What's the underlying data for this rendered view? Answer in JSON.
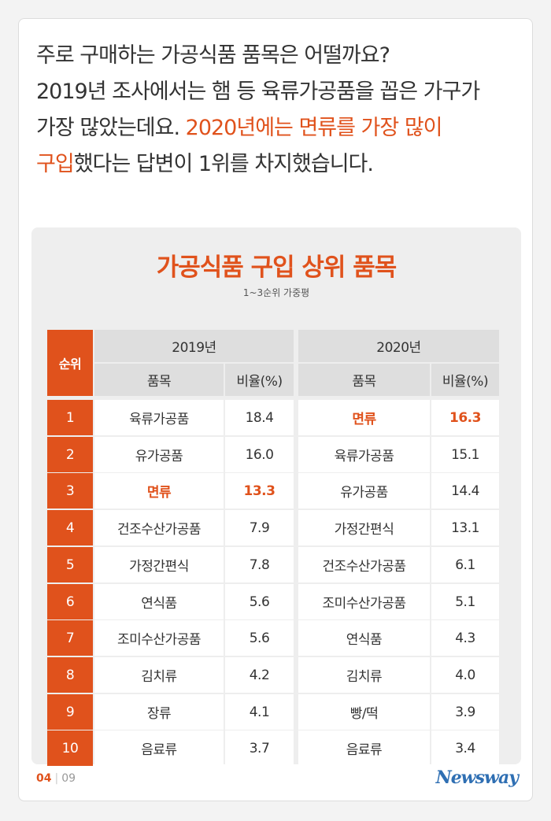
{
  "intro": {
    "line1": "주로 구매하는 가공식품 품목은 어떨까요?",
    "line2": "2019년 조사에서는 햄 등 육류가공품을 꼽은 가구가",
    "line3_plain": "가장 많았는데요. ",
    "line3_hl": "2020년에는 면류를 가장 많이",
    "line4_hl": "구입",
    "line4_plain": "했다는 답변이 1위를 차지했습니다."
  },
  "table": {
    "title": "가공식품 구입 상위 품목",
    "subtitle": "1~3순위 가중평",
    "rank_header": "순위",
    "year1": "2019년",
    "year2": "2020년",
    "item_header": "품목",
    "ratio_header": "비율(%)",
    "rows": [
      {
        "rank": "1",
        "item1": "육류가공품",
        "r1": "18.4",
        "item2": "면류",
        "r2": "16.3"
      },
      {
        "rank": "2",
        "item1": "유가공품",
        "r1": "16.0",
        "item2": "육류가공품",
        "r2": "15.1"
      },
      {
        "rank": "3",
        "item1": "면류",
        "r1": "13.3",
        "item2": "유가공품",
        "r2": "14.4"
      },
      {
        "rank": "4",
        "item1": "건조수산가공품",
        "r1": "7.9",
        "item2": "가정간편식",
        "r2": "13.1"
      },
      {
        "rank": "5",
        "item1": "가정간편식",
        "r1": "7.8",
        "item2": "건조수산가공품",
        "r2": "6.1"
      },
      {
        "rank": "6",
        "item1": "연식품",
        "r1": "5.6",
        "item2": "조미수산가공품",
        "r2": "5.1"
      },
      {
        "rank": "7",
        "item1": "조미수산가공품",
        "r1": "5.6",
        "item2": "연식품",
        "r2": "4.3"
      },
      {
        "rank": "8",
        "item1": "김치류",
        "r1": "4.2",
        "item2": "김치류",
        "r2": "4.0"
      },
      {
        "rank": "9",
        "item1": "장류",
        "r1": "4.1",
        "item2": "빵/떡",
        "r2": "3.9"
      },
      {
        "rank": "10",
        "item1": "음료류",
        "r1": "3.7",
        "item2": "음료류",
        "r2": "3.4"
      }
    ],
    "highlight_2019_row": 3,
    "highlight_2020_row": 1
  },
  "footer": {
    "page_current": "04",
    "page_total": "09",
    "logo": "Newsway"
  },
  "colors": {
    "accent": "#e0521c",
    "logo": "#2f6fb3"
  }
}
